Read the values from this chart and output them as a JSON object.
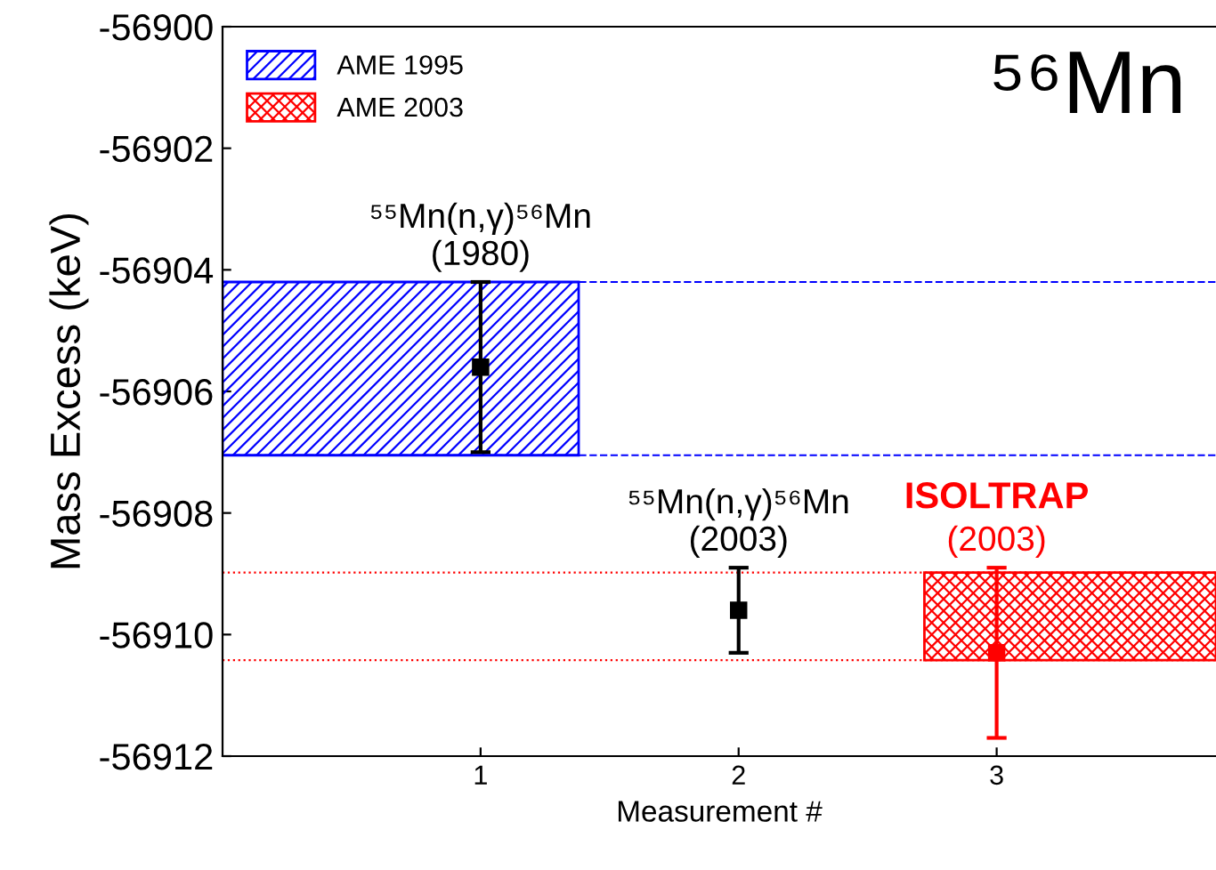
{
  "chart_data": {
    "type": "scatter",
    "xlabel": "Measurement #",
    "ylabel": "Mass Excess (keV)",
    "xlim": [
      0,
      3.85
    ],
    "xticks": [
      1,
      2,
      3
    ],
    "ylim": [
      -56912,
      -56900
    ],
    "yticks": [
      -56912,
      -56910,
      -56908,
      -56906,
      -56904,
      -56902,
      -56900
    ],
    "series": [
      {
        "color": "#000000",
        "x": [
          1,
          2
        ],
        "values": [
          -56905.6,
          -56909.6
        ],
        "errors": [
          1.4,
          0.7
        ]
      },
      {
        "color": "#ff0000",
        "x": [
          3
        ],
        "values": [
          -56910.3
        ],
        "errors": [
          1.4
        ]
      }
    ],
    "bands": [
      {
        "axis": "y",
        "from": -56907.05,
        "to": -56904.2,
        "label": "AME 1995",
        "color": "#0000ff"
      },
      {
        "axis": "y",
        "from": -56910.42,
        "to": -56908.98,
        "label": "AME 2003",
        "color": "#ff0000"
      }
    ],
    "ref_lines": [
      {
        "axis": "y",
        "value": -56904.2,
        "color": "#0000ff",
        "line_style": "dashed"
      },
      {
        "axis": "y",
        "value": -56907.05,
        "color": "#0000ff",
        "line_style": "dashed"
      },
      {
        "axis": "y",
        "value": -56908.98,
        "color": "#ff0000",
        "line_style": "dotted"
      },
      {
        "axis": "y",
        "value": -56910.42,
        "color": "#ff0000",
        "line_style": "dotted"
      }
    ],
    "annotations": [
      {
        "text": "⁵⁵Mn(n,γ)⁵⁶Mn\n(1980)",
        "x": 1,
        "y": -56904.2
      },
      {
        "text": "⁵⁵Mn(n,γ)⁵⁶Mn\n(2003)",
        "x": 2,
        "y": -56908.9
      },
      {
        "text": "ISOLTRAP\n(2003)",
        "x": 3,
        "y": -56908.9
      },
      "⁵⁶Mn"
    ],
    "marker": "square",
    "legend": "top left",
    "grid": false
  }
}
